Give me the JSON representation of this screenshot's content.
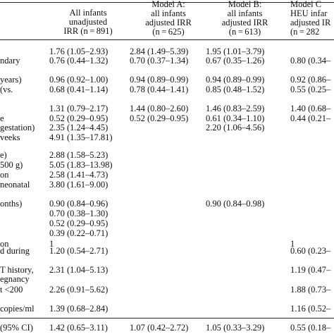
{
  "header": {
    "col1": [
      "All infants",
      "unadjusted",
      "IRR (n = 891)"
    ],
    "col2": [
      "Model A:",
      "all infants",
      "adjusted IRR",
      "(n = 625)"
    ],
    "col3": [
      "Model B:",
      "all infants",
      "adjusted IRR",
      "(n = 613)"
    ],
    "col4": [
      "Model C",
      "HEU infar",
      "adjusted IR",
      "(n = 282"
    ]
  },
  "rows": [
    {
      "label": "",
      "c1": "1.76 (1.05–2.93)",
      "c2": "2.84 (1.49–5.39)",
      "c3": "1.95 (1.01–3.79)",
      "c4": ""
    },
    {
      "label": "ndary",
      "c1": "0.76 (0.44–1.32)",
      "c2": "0.70 (0.37–1.34)",
      "c3": "0.67 (0.35–1.26)",
      "c4": "0.80 (0.34–"
    },
    {
      "label": "years)",
      "c1": "0.96 (0.92–1.00)",
      "c2": "0.94 (0.89–0.99)",
      "c3": "0.94 (0.89–0.99)",
      "c4": "0.92 (0.86–"
    },
    {
      "label": "(vs.",
      "c1": "0.68 (0.41–1.14)",
      "c2": "0.78 (0.44–1.41)",
      "c3": "0.85 (0.48–1.52)",
      "c4": "0.55 (0.25–"
    },
    {
      "label": "",
      "c1": "1.31 (0.79–2.17)",
      "c2": "1.44 (0.80–2.60)",
      "c3": "1.46 (0.83–2.59)",
      "c4": "1.40 (0.68–"
    },
    {
      "label": "e",
      "c1": "0.52 (0.29–0.95)",
      "c2": "0.52 (0.29–0.95)",
      "c3": "0.61 (0.34–1.10)",
      "c4": "0.44 (0.21–"
    },
    {
      "label": "gestation)",
      "c1": "2.35 (1.24–4.45)",
      "c2": "",
      "c3": "2.20 (1.06–4.56)",
      "c4": ""
    },
    {
      "label": "veeks",
      "c1": "4.91 (1.35–17.81)",
      "c2": "",
      "c3": "",
      "c4": ""
    },
    {
      "label": "e)",
      "c1": "2.88 (1.58–5.23)",
      "c2": "",
      "c3": "",
      "c4": ""
    },
    {
      "label": "500 g)",
      "c1": "5.05 (1.83–13.98)",
      "c2": "",
      "c3": "",
      "c4": ""
    },
    {
      "label": "on",
      "c1": "2.58 (1.41–4.73)",
      "c2": "",
      "c3": "",
      "c4": ""
    },
    {
      "label": "neonatal",
      "c1": "3.80 (1.61–9.00)",
      "c2": "",
      "c3": "",
      "c4": ""
    },
    {
      "label": "onths)",
      "c1": "0.90 (0.84–0.96)",
      "c2": "",
      "c3": "0.90 (0.84–0.98)",
      "c4": ""
    },
    {
      "label": "",
      "c1": "0.70 (0.38–1.30)",
      "c2": "",
      "c3": "",
      "c4": ""
    },
    {
      "label": "",
      "c1": "0.52 (0.29–0.95)",
      "c2": "",
      "c3": "",
      "c4": ""
    },
    {
      "label": "",
      "c1": "0.39 (0.22–0.71)",
      "c2": "",
      "c3": "",
      "c4": ""
    },
    {
      "label": "on",
      "c1": "1",
      "c2": "",
      "c3": "",
      "c4": "1"
    },
    {
      "label": "d during",
      "c1": "1.20 (0.54–2.71)",
      "c2": "",
      "c3": "",
      "c4": "0.60 (0.23–"
    },
    {
      "label": "T history,",
      "c1": "2.31 (1.04–5.13)",
      "c2": "",
      "c3": "",
      "c4": "1.19 (0.47–"
    },
    {
      "label": "egnancy",
      "c1": "",
      "c2": "",
      "c3": "",
      "c4": ""
    },
    {
      "label": "t <200",
      "c1": "2.26 (0.91–5.62)",
      "c2": "",
      "c3": "",
      "c4": "1.88 (0.73–"
    },
    {
      "label": "copies/ml",
      "c1": "1.39 (0.68–2.84)",
      "c2": "",
      "c3": "",
      "c4": "1.16 (0.52–"
    },
    {
      "label": "(95% CI)",
      "c1": "1.42 (0.65–3.11)",
      "c2": "1.07 (0.42–2.72)",
      "c3": "1.05 (0.33–3.29)",
      "c4": "0.55 (0.18–"
    }
  ]
}
